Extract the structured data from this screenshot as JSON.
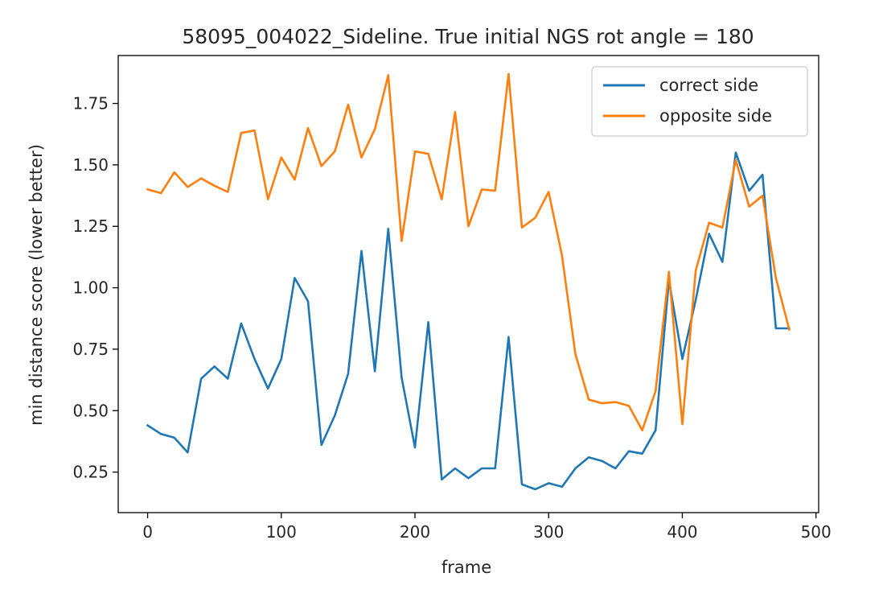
{
  "chart_data": {
    "type": "line",
    "title": "58095_004022_Sideline. True initial NGS rot angle = 180",
    "xlabel": "frame",
    "ylabel": "min distance score (lower better)",
    "xlim": [
      -22,
      502
    ],
    "ylim": [
      0.085,
      1.945
    ],
    "xticks": [
      0,
      100,
      200,
      300,
      400,
      500
    ],
    "xtick_labels": [
      "0",
      "100",
      "200",
      "300",
      "400",
      "500"
    ],
    "yticks": [
      0.25,
      0.5,
      0.75,
      1.0,
      1.25,
      1.5,
      1.75
    ],
    "ytick_labels": [
      "0.25",
      "0.50",
      "0.75",
      "1.00",
      "1.25",
      "1.50",
      "1.75"
    ],
    "grid": false,
    "legend_position": "top-right",
    "x": [
      0,
      10,
      20,
      30,
      40,
      50,
      60,
      70,
      80,
      90,
      100,
      110,
      120,
      130,
      140,
      150,
      160,
      170,
      180,
      190,
      200,
      210,
      220,
      230,
      240,
      250,
      260,
      270,
      280,
      290,
      300,
      310,
      320,
      330,
      340,
      350,
      360,
      370,
      380,
      390,
      400,
      410,
      420,
      430,
      440,
      450,
      460,
      470,
      480
    ],
    "series": [
      {
        "name": "correct side",
        "color": "#1f77b4",
        "values": [
          0.44,
          0.405,
          0.39,
          0.33,
          0.63,
          0.68,
          0.63,
          0.855,
          0.71,
          0.59,
          0.71,
          1.04,
          0.945,
          0.36,
          0.48,
          0.65,
          1.15,
          0.66,
          1.24,
          0.635,
          0.35,
          0.86,
          0.22,
          0.265,
          0.225,
          0.265,
          0.265,
          0.8,
          0.2,
          0.18,
          0.205,
          0.19,
          0.265,
          0.31,
          0.295,
          0.265,
          0.335,
          0.325,
          0.42,
          1.03,
          0.71,
          0.95,
          1.22,
          1.105,
          1.55,
          1.395,
          1.46,
          0.835,
          0.835
        ]
      },
      {
        "name": "opposite side",
        "color": "#ff7f0e",
        "values": [
          1.4,
          1.385,
          1.47,
          1.41,
          1.445,
          1.415,
          1.39,
          1.63,
          1.64,
          1.36,
          1.53,
          1.44,
          1.65,
          1.495,
          1.555,
          1.745,
          1.53,
          1.645,
          1.865,
          1.19,
          1.555,
          1.545,
          1.36,
          1.715,
          1.25,
          1.4,
          1.395,
          1.87,
          1.245,
          1.285,
          1.39,
          1.13,
          0.73,
          0.545,
          0.53,
          0.535,
          0.52,
          0.42,
          0.58,
          1.065,
          0.445,
          1.07,
          1.265,
          1.245,
          1.52,
          1.33,
          1.375,
          1.04,
          0.83
        ]
      }
    ]
  }
}
